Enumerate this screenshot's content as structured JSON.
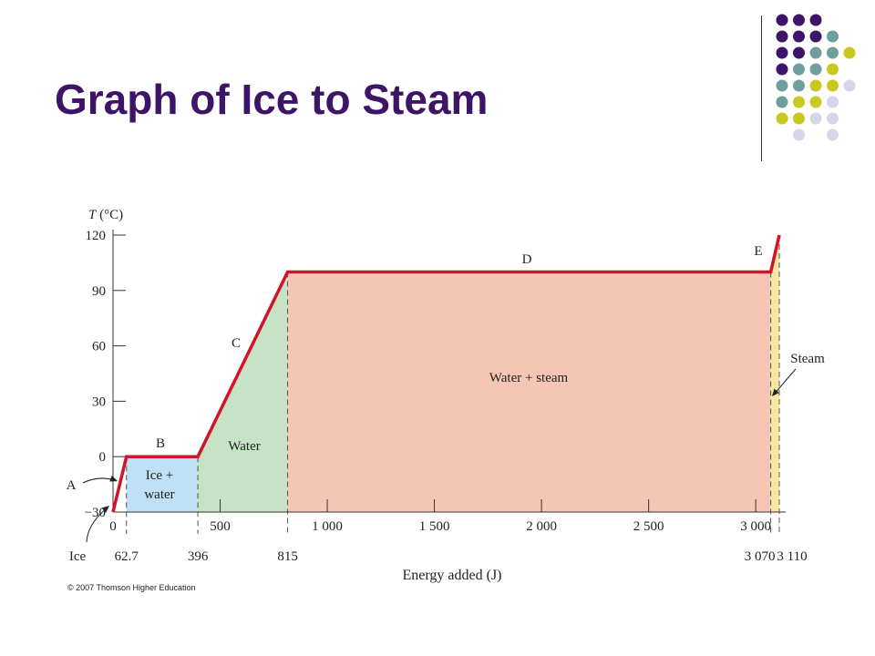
{
  "slide": {
    "title": "Graph of Ice to Steam",
    "copyright": "© 2007 Thomson Higher Education",
    "dot_colors": {
      "purple": "#3d1466",
      "teal": "#6f9e9e",
      "olive": "#c8c820",
      "lavender": "#d6d6e8"
    }
  },
  "chart_data": {
    "type": "line",
    "title": "",
    "xlabel": "Energy added (J)",
    "ylabel": "T (°C)",
    "xlim": [
      0,
      3110
    ],
    "ylim": [
      -30,
      120
    ],
    "grid": false,
    "line_color": "#d4122a",
    "points": [
      {
        "x": 0,
        "y": -30
      },
      {
        "x": 62.7,
        "y": 0
      },
      {
        "x": 396,
        "y": 0
      },
      {
        "x": 815,
        "y": 100
      },
      {
        "x": 3070,
        "y": 100
      },
      {
        "x": 3110,
        "y": 120
      }
    ],
    "x_ticks": [
      {
        "value": 0,
        "label": "0"
      },
      {
        "value": 500,
        "label": "500"
      },
      {
        "value": 1000,
        "label": "1 000"
      },
      {
        "value": 1500,
        "label": "1 500"
      },
      {
        "value": 2000,
        "label": "2 000"
      },
      {
        "value": 2500,
        "label": "2 500"
      },
      {
        "value": 3000,
        "label": "3 000"
      }
    ],
    "y_ticks": [
      {
        "value": -30,
        "label": "−30"
      },
      {
        "value": 0,
        "label": "0"
      },
      {
        "value": 30,
        "label": "30"
      },
      {
        "value": 60,
        "label": "60"
      },
      {
        "value": 90,
        "label": "90"
      },
      {
        "value": 120,
        "label": "120"
      }
    ],
    "marked_x": [
      {
        "value": 62.7,
        "label": "62.7"
      },
      {
        "value": 396,
        "label": "396"
      },
      {
        "value": 815,
        "label": "815"
      },
      {
        "value": 3070,
        "label": "3 070"
      },
      {
        "value": 3110,
        "label": "3 110"
      }
    ],
    "regions": [
      {
        "name": "ice-water",
        "label": "Ice + water",
        "x0": 62.7,
        "x1": 396,
        "color": "#bfe0f5"
      },
      {
        "name": "water",
        "label": "Water",
        "x0": 396,
        "x1": 815,
        "color": "#c6e3c6"
      },
      {
        "name": "water-steam",
        "label": "Water + steam",
        "x0": 815,
        "x1": 3070,
        "color": "#f6c6b4"
      },
      {
        "name": "steam",
        "label": "Steam",
        "x0": 3070,
        "x1": 3110,
        "color": "#f6e8a0"
      }
    ],
    "segment_labels": [
      {
        "name": "A",
        "label": "A"
      },
      {
        "name": "B",
        "label": "B"
      },
      {
        "name": "C",
        "label": "C"
      },
      {
        "name": "D",
        "label": "D"
      },
      {
        "name": "E",
        "label": "E"
      }
    ],
    "ice_label": "Ice"
  }
}
